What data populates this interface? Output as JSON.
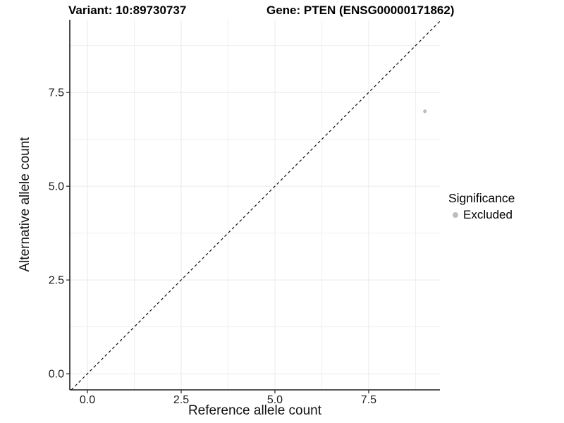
{
  "figure": {
    "title_left": "Variant: 10:89730737",
    "title_right": "Gene: PTEN (ENSG00000171862)"
  },
  "chart_data": {
    "type": "scatter",
    "title": "Variant: 10:89730737 / Gene: PTEN (ENSG00000171862)",
    "xlabel": "Reference allele count",
    "ylabel": "Alternative allele count",
    "xlim": [
      -0.47,
      9.4
    ],
    "ylim": [
      -0.43,
      9.44
    ],
    "x_tick_values": [
      0,
      2.5,
      5,
      7.5
    ],
    "x_tick_labels": [
      "0.0",
      "2.5",
      "5.0",
      "7.5"
    ],
    "y_tick_values": [
      0,
      2.5,
      5,
      7.5
    ],
    "y_tick_labels": [
      "0.0",
      "2.5",
      "5.0",
      "7.5"
    ],
    "x_minor_gridlines": [
      1.25,
      3.75,
      6.25,
      8.75
    ],
    "y_minor_gridlines": [
      1.25,
      3.75,
      6.25,
      8.75
    ],
    "grid": "major+minor",
    "reference_line": {
      "type": "identity y=x",
      "style": "dashed",
      "color": "#111111"
    },
    "points": [
      {
        "x": 9,
        "y": 7,
        "significance": "Excluded"
      }
    ],
    "legend": {
      "title": "Significance",
      "position": "right",
      "entries": [
        {
          "label": "Excluded",
          "color": "#bdbdbd"
        }
      ]
    },
    "colors": {
      "point": "#bdbdbd",
      "grid_major": "#eaeaea",
      "grid_minor": "#efefef",
      "axis_line": "#1f1f1f",
      "tick_text": "#1a1a1a"
    }
  }
}
